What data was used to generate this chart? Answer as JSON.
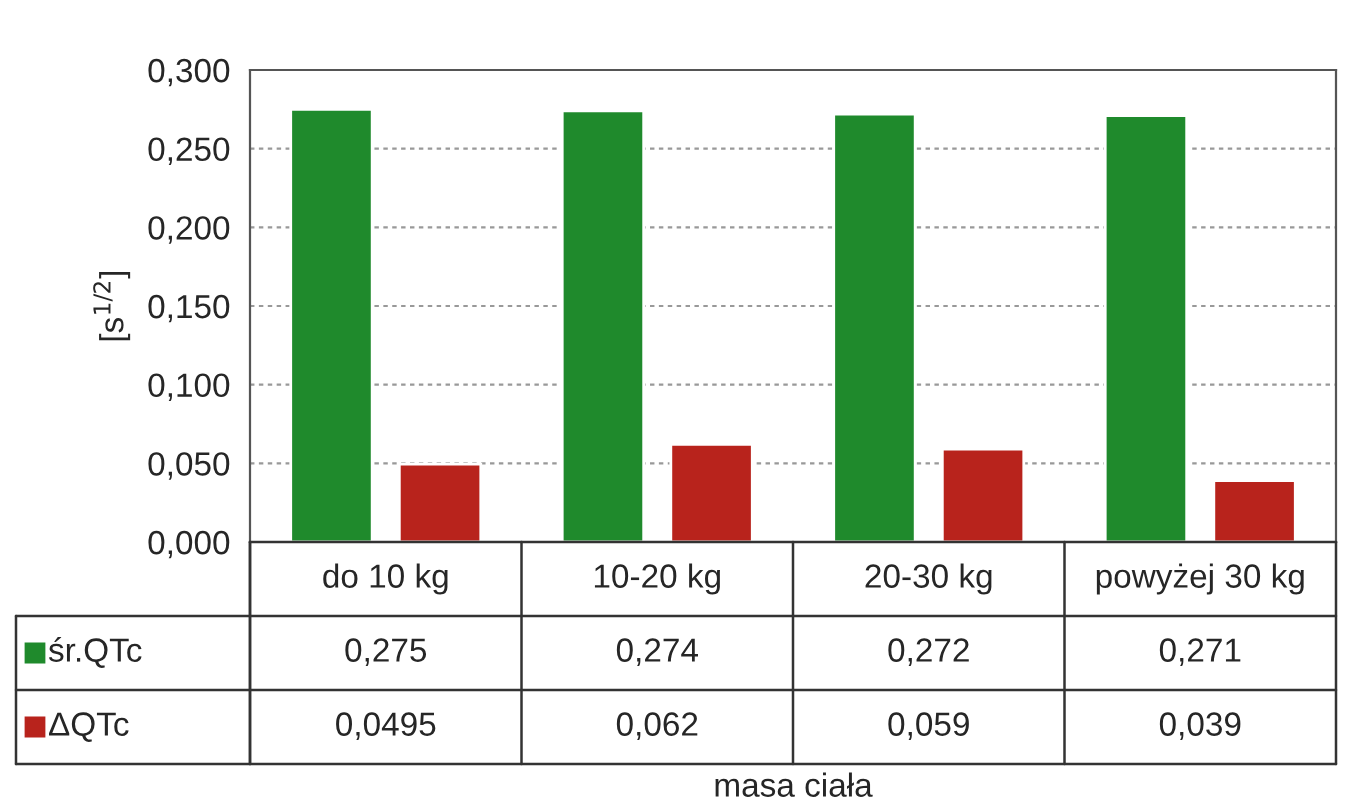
{
  "chart_data": {
    "type": "bar",
    "ylabel": "[s$^{1/2}$]",
    "annotations": [
      "masa ciała"
    ],
    "categories": [
      "do 10 kg",
      "10-20 kg",
      "20-30 kg",
      "powyżej 30 kg"
    ],
    "series": [
      {
        "name": "śr.QTc",
        "color": "#1f8a2c",
        "values": [
          0.275,
          0.274,
          0.272,
          0.271
        ],
        "value_labels": [
          "0,275",
          "0,274",
          "0,272",
          "0,271"
        ]
      },
      {
        "name": "ΔQTc",
        "color": "#b8231c",
        "values": [
          0.0495,
          0.062,
          0.059,
          0.039
        ],
        "value_labels": [
          "0,0495",
          "0,062",
          "0,059",
          "0,039"
        ]
      }
    ],
    "ylim": [
      0,
      0.3
    ],
    "yticks": [
      {
        "value": 0,
        "label": "0,000"
      },
      {
        "value": 0.05,
        "label": "0,050"
      },
      {
        "value": 0.1,
        "label": "0,100"
      },
      {
        "value": 0.15,
        "label": "0,150"
      },
      {
        "value": 0.2,
        "label": "0,200"
      },
      {
        "value": 0.25,
        "label": "0,250"
      },
      {
        "value": 0.3,
        "label": "0,300"
      }
    ],
    "grid": "y",
    "legend": "bottom left"
  }
}
